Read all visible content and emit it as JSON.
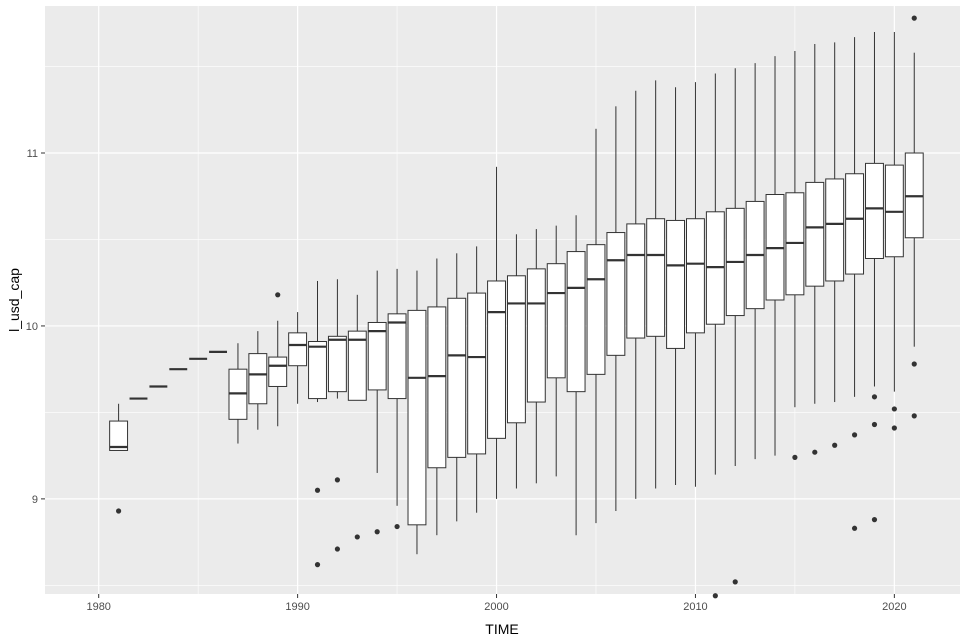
{
  "chart_data": {
    "type": "boxplot",
    "xlabel": "TIME",
    "ylabel": "l_usd_cap",
    "xlim": [
      1977.3,
      2023.3
    ],
    "ylim": [
      8.45,
      11.85
    ],
    "x_ticks": [
      1980,
      1990,
      2000,
      2010,
      2020
    ],
    "y_ticks": [
      9,
      10,
      11
    ],
    "grid": true,
    "colors": {
      "panel": "#ebebeb",
      "grid_major": "#ffffff",
      "box_fill": "#ffffff",
      "box_stroke": "#333333"
    },
    "boxes": [
      {
        "x": 1981,
        "whisker_low": 9.28,
        "q1": 9.28,
        "median": 9.3,
        "q3": 9.45,
        "whisker_high": 9.55,
        "outliers": [
          8.93
        ]
      },
      {
        "x": 1982,
        "whisker_low": 9.58,
        "q1": 9.58,
        "median": 9.58,
        "q3": 9.58,
        "whisker_high": 9.58,
        "outliers": []
      },
      {
        "x": 1983,
        "whisker_low": 9.65,
        "q1": 9.65,
        "median": 9.65,
        "q3": 9.65,
        "whisker_high": 9.65,
        "outliers": []
      },
      {
        "x": 1984,
        "whisker_low": 9.75,
        "q1": 9.75,
        "median": 9.75,
        "q3": 9.75,
        "whisker_high": 9.75,
        "outliers": []
      },
      {
        "x": 1985,
        "whisker_low": 9.81,
        "q1": 9.81,
        "median": 9.81,
        "q3": 9.81,
        "whisker_high": 9.81,
        "outliers": []
      },
      {
        "x": 1986,
        "whisker_low": 9.85,
        "q1": 9.85,
        "median": 9.85,
        "q3": 9.85,
        "whisker_high": 9.85,
        "outliers": []
      },
      {
        "x": 1987,
        "whisker_low": 9.32,
        "q1": 9.46,
        "median": 9.61,
        "q3": 9.75,
        "whisker_high": 9.9,
        "outliers": []
      },
      {
        "x": 1988,
        "whisker_low": 9.4,
        "q1": 9.55,
        "median": 9.72,
        "q3": 9.84,
        "whisker_high": 9.97,
        "outliers": []
      },
      {
        "x": 1989,
        "whisker_low": 9.42,
        "q1": 9.65,
        "median": 9.77,
        "q3": 9.82,
        "whisker_high": 10.03,
        "outliers": [
          10.18
        ]
      },
      {
        "x": 1990,
        "whisker_low": 9.55,
        "q1": 9.77,
        "median": 9.89,
        "q3": 9.96,
        "whisker_high": 10.08,
        "outliers": []
      },
      {
        "x": 1991,
        "whisker_low": 9.56,
        "q1": 9.58,
        "median": 9.88,
        "q3": 9.91,
        "whisker_high": 10.26,
        "outliers": [
          9.05,
          8.62
        ]
      },
      {
        "x": 1992,
        "whisker_low": 9.58,
        "q1": 9.62,
        "median": 9.92,
        "q3": 9.94,
        "whisker_high": 10.27,
        "outliers": [
          9.11,
          8.71
        ]
      },
      {
        "x": 1993,
        "whisker_low": 9.57,
        "q1": 9.57,
        "median": 9.92,
        "q3": 9.97,
        "whisker_high": 10.18,
        "outliers": [
          8.78
        ]
      },
      {
        "x": 1994,
        "whisker_low": 9.15,
        "q1": 9.63,
        "median": 9.97,
        "q3": 10.02,
        "whisker_high": 10.32,
        "outliers": [
          8.81
        ]
      },
      {
        "x": 1995,
        "whisker_low": 8.96,
        "q1": 9.58,
        "median": 10.02,
        "q3": 10.07,
        "whisker_high": 10.33,
        "outliers": [
          8.84
        ]
      },
      {
        "x": 1996,
        "whisker_low": 8.68,
        "q1": 8.85,
        "median": 9.7,
        "q3": 10.09,
        "whisker_high": 10.32,
        "outliers": []
      },
      {
        "x": 1997,
        "whisker_low": 8.79,
        "q1": 9.18,
        "median": 9.71,
        "q3": 10.11,
        "whisker_high": 10.39,
        "outliers": []
      },
      {
        "x": 1998,
        "whisker_low": 8.87,
        "q1": 9.24,
        "median": 9.83,
        "q3": 10.16,
        "whisker_high": 10.42,
        "outliers": []
      },
      {
        "x": 1999,
        "whisker_low": 8.92,
        "q1": 9.26,
        "median": 9.82,
        "q3": 10.19,
        "whisker_high": 10.46,
        "outliers": []
      },
      {
        "x": 2000,
        "whisker_low": 9.0,
        "q1": 9.35,
        "median": 10.08,
        "q3": 10.26,
        "whisker_high": 10.92,
        "outliers": []
      },
      {
        "x": 2001,
        "whisker_low": 9.06,
        "q1": 9.44,
        "median": 10.13,
        "q3": 10.29,
        "whisker_high": 10.53,
        "outliers": []
      },
      {
        "x": 2002,
        "whisker_low": 9.09,
        "q1": 9.56,
        "median": 10.13,
        "q3": 10.33,
        "whisker_high": 10.56,
        "outliers": []
      },
      {
        "x": 2003,
        "whisker_low": 9.13,
        "q1": 9.7,
        "median": 10.19,
        "q3": 10.36,
        "whisker_high": 10.58,
        "outliers": []
      },
      {
        "x": 2004,
        "whisker_low": 8.79,
        "q1": 9.62,
        "median": 10.22,
        "q3": 10.43,
        "whisker_high": 10.64,
        "outliers": []
      },
      {
        "x": 2005,
        "whisker_low": 8.86,
        "q1": 9.72,
        "median": 10.27,
        "q3": 10.47,
        "whisker_high": 11.14,
        "outliers": []
      },
      {
        "x": 2006,
        "whisker_low": 8.93,
        "q1": 9.83,
        "median": 10.38,
        "q3": 10.54,
        "whisker_high": 11.27,
        "outliers": []
      },
      {
        "x": 2007,
        "whisker_low": 9.0,
        "q1": 9.93,
        "median": 10.41,
        "q3": 10.59,
        "whisker_high": 11.36,
        "outliers": []
      },
      {
        "x": 2008,
        "whisker_low": 9.06,
        "q1": 9.94,
        "median": 10.41,
        "q3": 10.62,
        "whisker_high": 11.42,
        "outliers": []
      },
      {
        "x": 2009,
        "whisker_low": 9.08,
        "q1": 9.87,
        "median": 10.35,
        "q3": 10.61,
        "whisker_high": 11.38,
        "outliers": []
      },
      {
        "x": 2010,
        "whisker_low": 9.07,
        "q1": 9.96,
        "median": 10.36,
        "q3": 10.62,
        "whisker_high": 11.41,
        "outliers": []
      },
      {
        "x": 2011,
        "whisker_low": 9.14,
        "q1": 10.01,
        "median": 10.34,
        "q3": 10.66,
        "whisker_high": 11.46,
        "outliers": [
          8.44
        ]
      },
      {
        "x": 2012,
        "whisker_low": 9.19,
        "q1": 10.06,
        "median": 10.37,
        "q3": 10.68,
        "whisker_high": 11.49,
        "outliers": [
          8.52
        ]
      },
      {
        "x": 2013,
        "whisker_low": 9.23,
        "q1": 10.1,
        "median": 10.41,
        "q3": 10.72,
        "whisker_high": 11.52,
        "outliers": []
      },
      {
        "x": 2014,
        "whisker_low": 9.25,
        "q1": 10.15,
        "median": 10.45,
        "q3": 10.76,
        "whisker_high": 11.56,
        "outliers": []
      },
      {
        "x": 2015,
        "whisker_low": 9.53,
        "q1": 10.18,
        "median": 10.48,
        "q3": 10.77,
        "whisker_high": 11.59,
        "outliers": [
          9.24
        ]
      },
      {
        "x": 2016,
        "whisker_low": 9.55,
        "q1": 10.23,
        "median": 10.57,
        "q3": 10.83,
        "whisker_high": 11.63,
        "outliers": [
          9.27
        ]
      },
      {
        "x": 2017,
        "whisker_low": 9.56,
        "q1": 10.26,
        "median": 10.59,
        "q3": 10.85,
        "whisker_high": 11.64,
        "outliers": [
          9.31
        ]
      },
      {
        "x": 2018,
        "whisker_low": 9.59,
        "q1": 10.3,
        "median": 10.62,
        "q3": 10.88,
        "whisker_high": 11.67,
        "outliers": [
          9.37,
          8.83
        ]
      },
      {
        "x": 2019,
        "whisker_low": 9.65,
        "q1": 10.39,
        "median": 10.68,
        "q3": 10.94,
        "whisker_high": 11.7,
        "outliers": [
          9.59,
          9.43,
          8.88
        ]
      },
      {
        "x": 2020,
        "whisker_low": 9.62,
        "q1": 10.4,
        "median": 10.66,
        "q3": 10.93,
        "whisker_high": 11.7,
        "outliers": [
          9.52,
          9.41
        ]
      },
      {
        "x": 2021,
        "whisker_low": 9.88,
        "q1": 10.51,
        "median": 10.75,
        "q3": 11.0,
        "whisker_high": 11.58,
        "outliers": [
          11.78,
          9.78,
          9.48
        ]
      }
    ]
  }
}
